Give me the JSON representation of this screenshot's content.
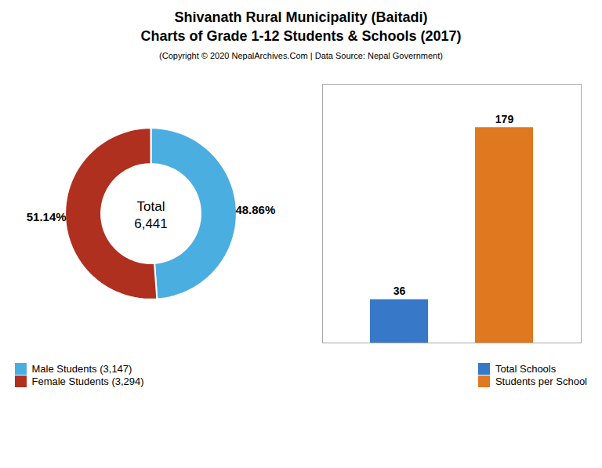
{
  "chart_data": [
    {
      "type": "donut",
      "title": "Shivanath Rural Municipality (Baitadi)\nCharts of Grade 1-12 Students & Schools (2017)",
      "subtitle": "(Copyright © 2020 NepalArchives.Com | Data Source: Nepal Government)",
      "categories": [
        "Male Students (3,147)",
        "Female Students (3,294)"
      ],
      "values": [
        48.86,
        51.14
      ],
      "value_labels": [
        "48.86%",
        "51.14%"
      ],
      "colors": [
        "#4aaee0",
        "#b03020"
      ],
      "annotation": "Total\n6,441",
      "data_labels": true,
      "legend": "lower left"
    },
    {
      "type": "bar",
      "categories": [
        "Total Schools",
        "Students per School"
      ],
      "values": [
        36,
        179
      ],
      "colors": [
        "#3878c8",
        "#e07820"
      ],
      "ylim": [
        0,
        215
      ],
      "data_labels": true,
      "tick_labels": false,
      "legend": "lower right"
    }
  ]
}
